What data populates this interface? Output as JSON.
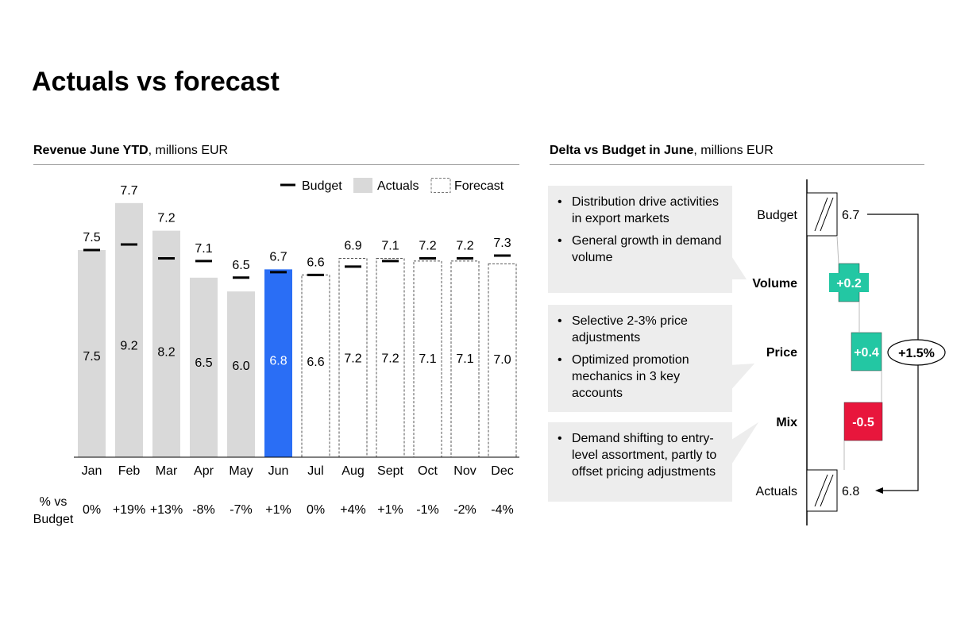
{
  "title": "Actuals vs forecast",
  "left_panel": {
    "title_bold": "Revenue June YTD",
    "title_rest": ", millions EUR",
    "row_label": "% vs Budget"
  },
  "right_panel": {
    "title_bold": "Delta vs Budget in June",
    "title_rest": ", millions EUR"
  },
  "colors": {
    "actual": "#d9d9d9",
    "highlight": "#2a6ef5",
    "budget": "#000000",
    "positive": "#23c7a3",
    "negative": "#e8163c",
    "note_bg": "#ededed"
  },
  "chart_data": [
    {
      "type": "bar",
      "legend": [
        "Budget",
        "Actuals",
        "Forecast"
      ],
      "legend_position": "top-right",
      "categories": [
        "Jan",
        "Feb",
        "Mar",
        "Apr",
        "May",
        "Jun",
        "Jul",
        "Aug",
        "Sept",
        "Oct",
        "Nov",
        "Dec"
      ],
      "bar_kind": [
        "actual",
        "actual",
        "actual",
        "actual",
        "actual",
        "highlight",
        "forecast",
        "forecast",
        "forecast",
        "forecast",
        "forecast",
        "forecast"
      ],
      "values": [
        7.5,
        9.2,
        8.2,
        6.5,
        6.0,
        6.8,
        6.6,
        7.2,
        7.2,
        7.1,
        7.1,
        7.0
      ],
      "value_labels": [
        "7.5",
        "9.2",
        "8.2",
        "6.5",
        "6.0",
        "6.8",
        "6.6",
        "7.2",
        "7.2",
        "7.1",
        "7.1",
        "7.0"
      ],
      "budget": [
        7.5,
        7.7,
        7.2,
        7.1,
        6.5,
        6.7,
        6.6,
        6.9,
        7.1,
        7.2,
        7.2,
        7.3
      ],
      "budget_labels": [
        "7.5",
        "7.7",
        "7.2",
        "7.1",
        "6.5",
        "6.7",
        "6.6",
        "6.9",
        "7.1",
        "7.2",
        "7.2",
        "7.3"
      ],
      "pct_vs_budget": [
        "0%",
        "+19%",
        "+13%",
        "-8%",
        "-7%",
        "+1%",
        "0%",
        "+4%",
        "+1%",
        "-1%",
        "-2%",
        "-4%"
      ],
      "ylim": [
        0,
        9.2
      ],
      "grid": false
    },
    {
      "type": "waterfall",
      "categories": [
        "Budget",
        "Volume",
        "Price",
        "Mix",
        "Actuals"
      ],
      "values": [
        6.7,
        0.2,
        0.4,
        -0.5,
        6.8
      ],
      "labels": [
        "6.7",
        "+0.2",
        "+0.4",
        "-0.5",
        "6.8"
      ],
      "total_change": "+1.5%"
    }
  ],
  "notes": [
    {
      "items": [
        "Distribution drive activities in export markets",
        "General growth in demand volume"
      ]
    },
    {
      "items": [
        "Selective 2-3% price adjustments",
        "Optimized promotion mechanics in 3 key accounts"
      ]
    },
    {
      "items": [
        "Demand shifting to entry-level assortment, partly to offset pricing adjustments"
      ]
    }
  ]
}
